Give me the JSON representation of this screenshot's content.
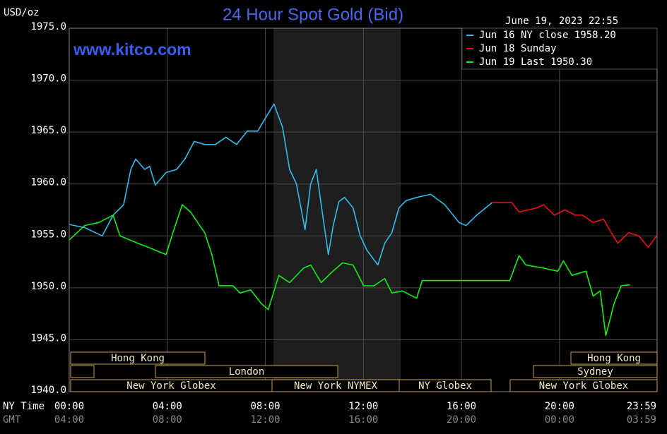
{
  "chart_data": {
    "type": "line",
    "title": "24 Hour Spot Gold (Bid)",
    "y_label": "USD/oz",
    "timestamp": "June 19, 2023 22:55",
    "annotation": "www.kitco.com",
    "x_row_label": "NY Time",
    "x2_row_label": "GMT",
    "xlim": [
      0,
      23.983
    ],
    "xticks": [
      {
        "value": 0,
        "label": "00:00"
      },
      {
        "value": 4,
        "label": "04:00"
      },
      {
        "value": 8,
        "label": "08:00"
      },
      {
        "value": 12,
        "label": "12:00"
      },
      {
        "value": 16,
        "label": "16:00"
      },
      {
        "value": 20,
        "label": "20:00"
      },
      {
        "value": 23.983,
        "label": "23:59"
      }
    ],
    "x2ticks": [
      {
        "value": 0,
        "label": "04:00"
      },
      {
        "value": 4,
        "label": "08:00"
      },
      {
        "value": 8,
        "label": "12:00"
      },
      {
        "value": 12,
        "label": "16:00"
      },
      {
        "value": 16,
        "label": "20:00"
      },
      {
        "value": 20,
        "label": "00:00"
      },
      {
        "value": 23.983,
        "label": "03:59"
      }
    ],
    "ylim": [
      1940,
      1975
    ],
    "yticks": [
      {
        "value": 1940,
        "label": "1940.0"
      },
      {
        "value": 1945,
        "label": "1945.0"
      },
      {
        "value": 1950,
        "label": "1950.0"
      },
      {
        "value": 1955,
        "label": "1955.0"
      },
      {
        "value": 1960,
        "label": "1960.0"
      },
      {
        "value": 1965,
        "label": "1965.0"
      },
      {
        "value": 1970,
        "label": "1970.0"
      },
      {
        "value": 1975,
        "label": "1975.0"
      }
    ],
    "grid": true,
    "legend": "top-right",
    "sessions": [
      "Hong Kong",
      "London",
      "New York Globex",
      "New York NYMEX",
      "NY Globex",
      "Hong Kong",
      "Sydney",
      "New York Globex"
    ],
    "series": [
      {
        "name": "Jun 16 NY close 1958.20",
        "color": "#33bbee",
        "x": [
          0,
          0.63,
          1.35,
          1.79,
          2.22,
          2.51,
          2.71,
          3.08,
          3.28,
          3.51,
          3.95,
          4.38,
          4.72,
          5.1,
          5.53,
          5.96,
          6.39,
          6.83,
          7.26,
          7.69,
          8.12,
          8.35,
          8.7,
          8.99,
          9.27,
          9.62,
          9.85,
          10.08,
          10.28,
          10.57,
          10.77,
          11.0,
          11.23,
          11.58,
          11.87,
          12.15,
          12.59,
          12.87,
          13.16,
          13.45,
          13.74,
          14.17,
          14.75,
          15.32,
          15.9,
          16.19,
          16.62,
          17.25
        ],
        "values": [
          1956.1,
          1955.8,
          1955.0,
          1957.0,
          1958.0,
          1961.4,
          1962.4,
          1961.4,
          1961.7,
          1959.9,
          1961.1,
          1961.4,
          1962.4,
          1964.1,
          1963.8,
          1963.8,
          1964.5,
          1963.8,
          1965.1,
          1965.1,
          1966.8,
          1967.7,
          1965.5,
          1961.4,
          1960.0,
          1955.6,
          1960.0,
          1961.4,
          1958.0,
          1953.2,
          1956.0,
          1958.3,
          1958.7,
          1957.7,
          1955.0,
          1953.6,
          1952.2,
          1954.3,
          1955.3,
          1957.7,
          1958.4,
          1958.7,
          1959.0,
          1958.0,
          1956.3,
          1956.0,
          1957.0,
          1958.2
        ]
      },
      {
        "name": "Jun 18 Sunday",
        "color": "#ee1111",
        "x": [
          17.25,
          18.06,
          18.35,
          19.07,
          19.35,
          19.79,
          20.22,
          20.65,
          20.94,
          21.37,
          21.8,
          22.09,
          22.38,
          22.81,
          23.24,
          23.62,
          23.96
        ],
        "values": [
          1958.2,
          1958.2,
          1957.3,
          1957.7,
          1958.0,
          1957.0,
          1957.5,
          1957.0,
          1957.0,
          1956.3,
          1956.6,
          1955.4,
          1954.3,
          1955.3,
          1955.0,
          1953.9,
          1955.0
        ]
      },
      {
        "name": "Jun 19 Last 1950.30",
        "color": "#11ee11",
        "x": [
          0,
          0.63,
          1.21,
          1.79,
          2.07,
          2.79,
          3.23,
          3.95,
          4.23,
          4.61,
          4.95,
          5.53,
          5.82,
          6.11,
          6.68,
          6.97,
          7.4,
          7.83,
          8.12,
          8.55,
          8.99,
          9.56,
          9.85,
          10.28,
          10.71,
          11.15,
          11.58,
          12.01,
          12.44,
          12.87,
          13.16,
          13.59,
          14.17,
          14.4,
          17.97,
          18.35,
          18.63,
          19.35,
          19.93,
          20.16,
          20.51,
          21.08,
          21.37,
          21.66,
          21.89,
          22.23,
          22.52,
          22.87
        ],
        "values": [
          1954.6,
          1956.0,
          1956.3,
          1957.0,
          1955.0,
          1954.3,
          1953.9,
          1953.2,
          1955.3,
          1958.0,
          1957.3,
          1955.3,
          1953.2,
          1950.2,
          1950.2,
          1949.5,
          1949.8,
          1948.5,
          1947.9,
          1951.2,
          1950.5,
          1951.9,
          1952.2,
          1950.5,
          1951.5,
          1952.4,
          1952.2,
          1950.2,
          1950.2,
          1950.9,
          1949.5,
          1949.7,
          1949.0,
          1950.7,
          1950.7,
          1953.1,
          1952.2,
          1951.9,
          1951.6,
          1952.6,
          1951.2,
          1951.6,
          1949.2,
          1949.7,
          1945.4,
          1948.5,
          1950.2,
          1950.3
        ]
      }
    ]
  }
}
